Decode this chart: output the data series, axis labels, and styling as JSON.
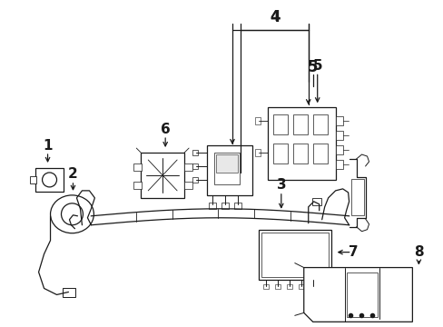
{
  "bg_color": "#ffffff",
  "lc": "#1a1a1a",
  "lw": 0.9,
  "figsize": [
    4.89,
    3.6
  ],
  "dpi": 100,
  "xlim": [
    0,
    489
  ],
  "ylim": [
    0,
    360
  ]
}
